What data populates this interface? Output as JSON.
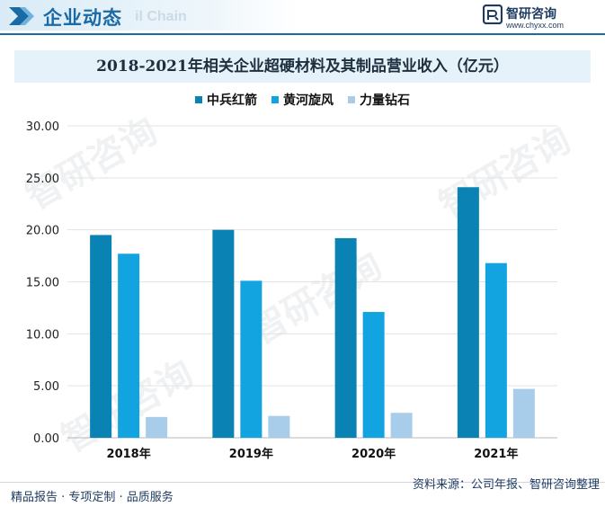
{
  "header": {
    "title": "企业动态",
    "ghost_text": "il Chain",
    "brand_name": "智研咨询",
    "brand_url": "www.chyxx.com"
  },
  "colors": {
    "accent": "#1a6aa6",
    "series": [
      "#0a82b4",
      "#12a4e0",
      "#a7cdea"
    ]
  },
  "chart_data": {
    "type": "bar",
    "title": "2018-2021年相关企业超硬材料及其制品营业收入（亿元）",
    "categories": [
      "2018年",
      "2019年",
      "2020年",
      "2021年"
    ],
    "series": [
      {
        "name": "中兵红箭",
        "values": [
          19.5,
          20.0,
          19.2,
          24.1
        ]
      },
      {
        "name": "黄河旋风",
        "values": [
          17.7,
          15.1,
          12.1,
          16.8
        ]
      },
      {
        "name": "力量钻石",
        "values": [
          2.0,
          2.1,
          2.4,
          4.7
        ]
      }
    ],
    "ylim": [
      0,
      30
    ],
    "yticks": [
      0,
      5,
      10,
      15,
      20,
      25,
      30
    ],
    "ytick_labels": [
      "0.00",
      "5.00",
      "10.00",
      "15.00",
      "20.00",
      "25.00",
      "30.00"
    ],
    "grid": true,
    "legend_position": "top-center",
    "xlabel": "",
    "ylabel": ""
  },
  "footer": {
    "left": "精品报告 · 专项定制 · 品质服务",
    "source": "资料来源：公司年报、智研咨询整理"
  },
  "watermark": "智研咨询"
}
